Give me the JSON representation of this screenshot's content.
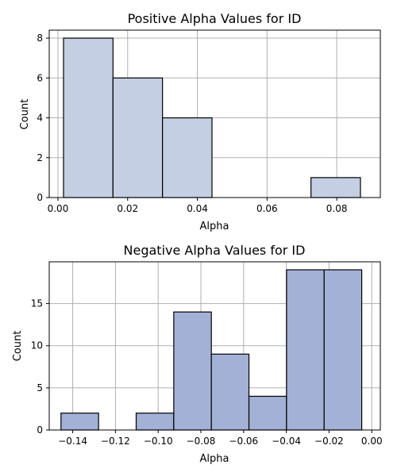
{
  "chart_data": [
    {
      "type": "bar",
      "title": "Positive Alpha Values for ID",
      "xlabel": "Alpha",
      "ylabel": "Count",
      "xlim": [
        -0.0025,
        0.0925
      ],
      "ylim": [
        0,
        8.4
      ],
      "xticks": [
        0.0,
        0.02,
        0.04,
        0.06,
        0.08
      ],
      "xtick_labels": [
        "0.00",
        "0.02",
        "0.04",
        "0.06",
        "0.08"
      ],
      "yticks": [
        0,
        2,
        4,
        6,
        8
      ],
      "ytick_labels": [
        "0",
        "2",
        "4",
        "6",
        "8"
      ],
      "grid": true,
      "bar_color": "#c5cfe3",
      "bins": [
        {
          "x0": 0.0016,
          "x1": 0.0158,
          "value": 8
        },
        {
          "x0": 0.0158,
          "x1": 0.03,
          "value": 6
        },
        {
          "x0": 0.03,
          "x1": 0.0442,
          "value": 4
        },
        {
          "x0": 0.0442,
          "x1": 0.0584,
          "value": 0
        },
        {
          "x0": 0.0584,
          "x1": 0.0726,
          "value": 0
        },
        {
          "x0": 0.0726,
          "x1": 0.0868,
          "value": 1
        }
      ]
    },
    {
      "type": "bar",
      "title": "Negative Alpha Values for ID",
      "xlabel": "Alpha",
      "ylabel": "Count",
      "xlim": [
        -0.151,
        0.004
      ],
      "ylim": [
        0,
        19.95
      ],
      "xticks": [
        -0.14,
        -0.12,
        -0.1,
        -0.08,
        -0.06,
        -0.04,
        -0.02,
        0.0
      ],
      "xtick_labels": [
        "−0.14",
        "−0.12",
        "−0.10",
        "−0.08",
        "−0.06",
        "−0.04",
        "−0.02",
        "0.00"
      ],
      "yticks": [
        0,
        5,
        10,
        15
      ],
      "ytick_labels": [
        "0",
        "5",
        "10",
        "15"
      ],
      "grid": true,
      "bar_color": "#a3b1d6",
      "bins": [
        {
          "x0": -0.1455,
          "x1": -0.1279,
          "value": 2
        },
        {
          "x0": -0.1279,
          "x1": -0.1103,
          "value": 0
        },
        {
          "x0": -0.1103,
          "x1": -0.0927,
          "value": 2
        },
        {
          "x0": -0.0927,
          "x1": -0.0751,
          "value": 14
        },
        {
          "x0": -0.0751,
          "x1": -0.0575,
          "value": 9
        },
        {
          "x0": -0.0575,
          "x1": -0.0399,
          "value": 4
        },
        {
          "x0": -0.0399,
          "x1": -0.0223,
          "value": 19
        },
        {
          "x0": -0.0223,
          "x1": -0.0047,
          "value": 19
        }
      ]
    }
  ]
}
